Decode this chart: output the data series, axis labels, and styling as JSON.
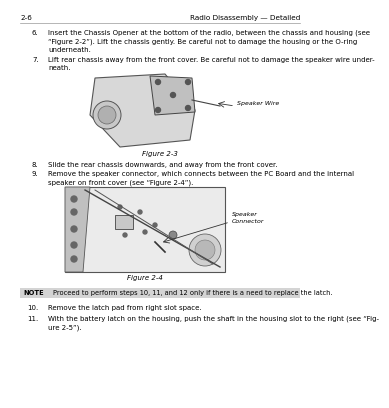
{
  "page_number": "2-6",
  "header_right": "Radio Disassembly — Detailed",
  "bg_color": "#ffffff",
  "text_color": "#000000",
  "note_bg": "#d4d4d4",
  "step6_label": "6.",
  "step6_text": "Insert the Chassis Opener at the bottom of the radio, between the chassis and housing (see\n“Figure 2-2”). Lift the chassis gently. Be careful not to damage the housing or the O-ring\nunderneath.",
  "step7_label": "7.",
  "step7_text": "Lift rear chassis away from the front cover. Be careful not to damage the speaker wire under-\nneath.",
  "fig3_caption": "Figure 2-3",
  "fig3_annotation": "Speaker Wire",
  "step8_label": "8.",
  "step8_text": "Slide the rear chassis downwards, and away from the front cover.",
  "step9_label": "9.",
  "step9_text": "Remove the speaker connector, which connects between the PC Board and the internal\nspeaker on front cover (see “Figure 2-4”).",
  "fig4_caption": "Figure 2-4",
  "fig4_annotation": "Speaker\nConnector",
  "note_label": "NOTE",
  "note_text": "Proceed to perform steps 10, 11, and 12 only if there is a need to replace the latch.",
  "step10_label": "10.",
  "step10_text": "Remove the latch pad from right slot space.",
  "step11_label": "11.",
  "step11_text": "With the battery latch on the housing, push the shaft in the housing slot to the right (see “Fig-\nure 2-5”)."
}
